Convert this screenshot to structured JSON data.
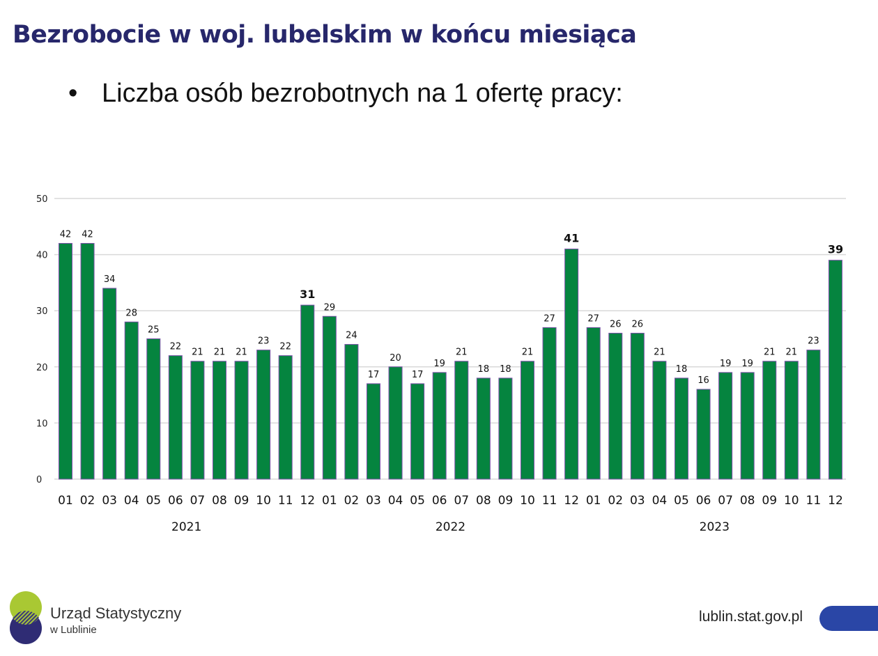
{
  "title": "Bezrobocie w woj. lubelskim w końcu miesiąca",
  "bullet": "Liczba osób bezrobotnych na 1 ofertę pracy:",
  "footer": {
    "org_line1": "Urząd Statystyczny",
    "org_line2": "w Lublinie",
    "url": "lublin.stat.gov.pl"
  },
  "colors": {
    "bar": "#05843f",
    "bar_border": "#7a4fa8",
    "title": "#27276b",
    "accent": "#2a46a6"
  },
  "chart_data": {
    "type": "bar",
    "title": "Liczba osób bezrobotnych na 1 ofertę pracy",
    "ylim": [
      0,
      50
    ],
    "yticks": [
      0,
      10,
      20,
      30,
      40,
      50
    ],
    "grid": true,
    "categories": [
      "01",
      "02",
      "03",
      "04",
      "05",
      "06",
      "07",
      "08",
      "09",
      "10",
      "11",
      "12",
      "01",
      "02",
      "03",
      "04",
      "05",
      "06",
      "07",
      "08",
      "09",
      "10",
      "11",
      "12",
      "01",
      "02",
      "03",
      "04",
      "05",
      "06",
      "07",
      "08",
      "09",
      "10",
      "11",
      "12"
    ],
    "groups": [
      {
        "label": "2021",
        "start": 0,
        "end": 11
      },
      {
        "label": "2022",
        "start": 12,
        "end": 23
      },
      {
        "label": "2023",
        "start": 24,
        "end": 35
      }
    ],
    "values": [
      42,
      42,
      34,
      28,
      25,
      22,
      21,
      21,
      21,
      23,
      22,
      31,
      29,
      24,
      17,
      20,
      17,
      19,
      21,
      18,
      18,
      21,
      27,
      41,
      27,
      26,
      26,
      21,
      18,
      16,
      19,
      19,
      21,
      21,
      23,
      39
    ],
    "bold_labels": [
      11,
      23,
      35
    ]
  }
}
